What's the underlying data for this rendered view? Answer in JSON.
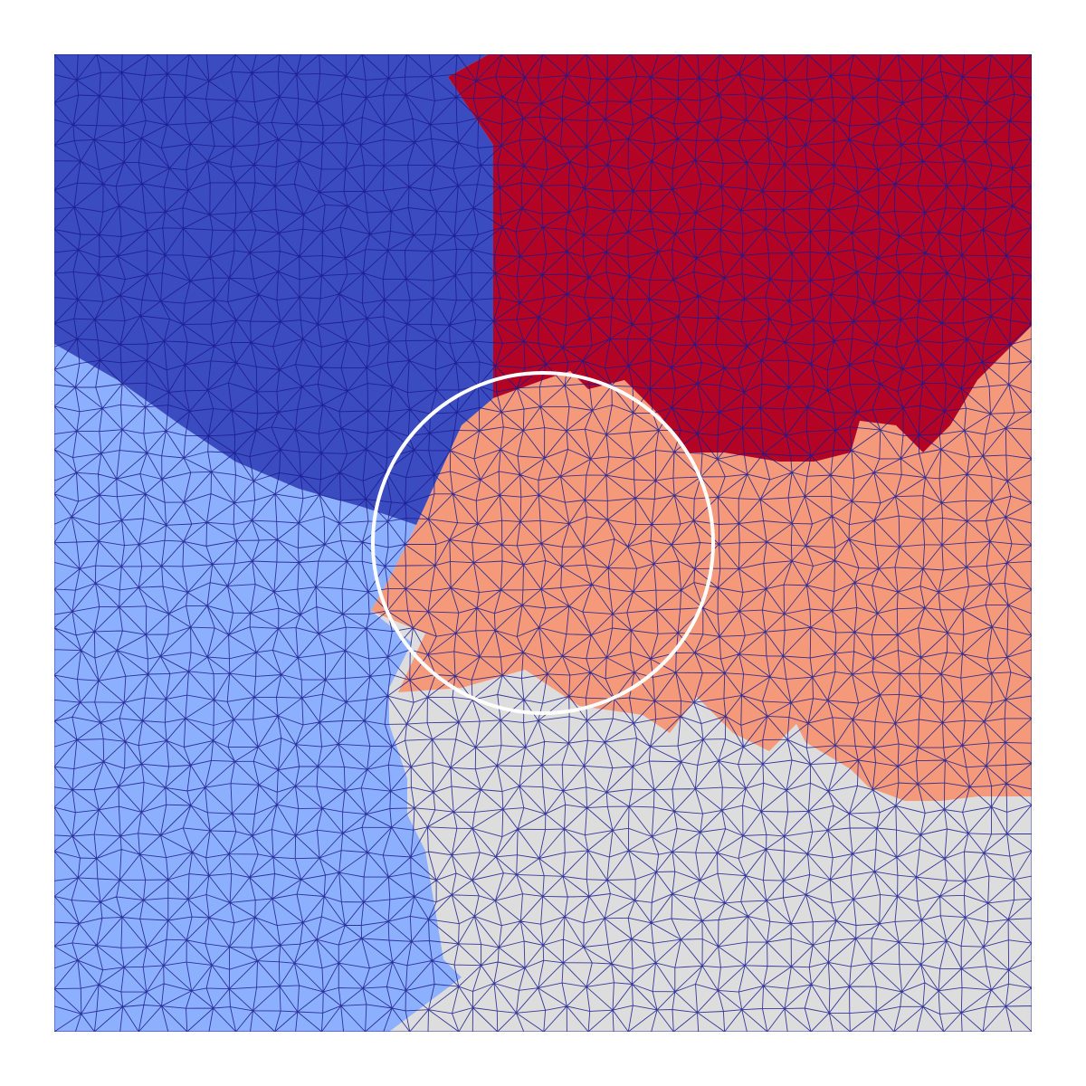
{
  "figure": {
    "background": "#ffffff",
    "mesh_line_color": "#1a1a8c",
    "circle_color": "#ffffff"
  },
  "partitions": [
    {
      "id": "top-left",
      "color": "#3b4cc0"
    },
    {
      "id": "top-right",
      "color": "#b40426"
    },
    {
      "id": "left",
      "color": "#8db0fe"
    },
    {
      "id": "center-right",
      "color": "#f49a7b"
    },
    {
      "id": "bottom-right",
      "color": "#dddddd"
    }
  ]
}
